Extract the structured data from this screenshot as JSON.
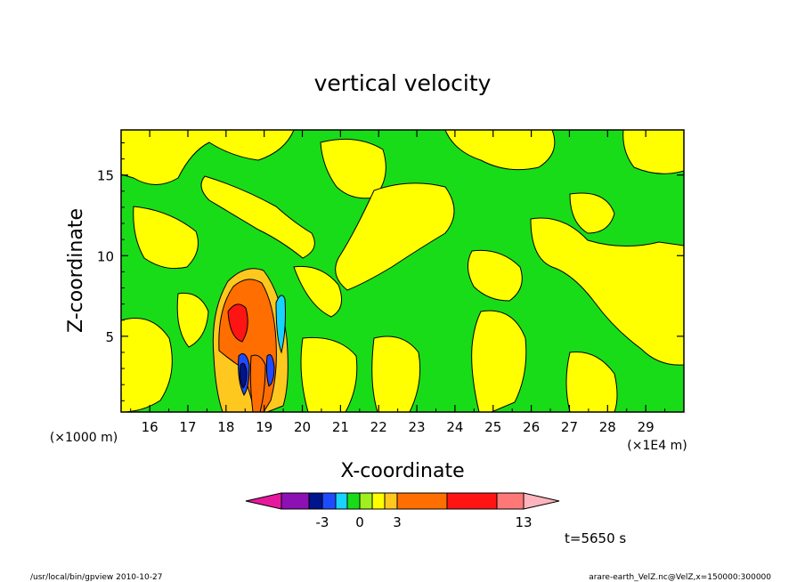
{
  "chart_data": {
    "type": "heatmap",
    "title": "vertical velocity",
    "xlabel": "X-coordinate",
    "ylabel": "Z-coordinate",
    "x_unit_label": "(×1E4 m)",
    "y_unit_label": "(×1000 m)",
    "x_ticks": [
      "16",
      "17",
      "18",
      "19",
      "20",
      "21",
      "22",
      "23",
      "24",
      "25",
      "26",
      "27",
      "28",
      "29"
    ],
    "y_ticks": [
      "5",
      "10",
      "15"
    ],
    "xlim": [
      15.25,
      30
    ],
    "ylim": [
      0.3,
      17.8
    ],
    "colorbar": {
      "colors": [
        "#e6199e",
        "#8c10b4",
        "#00148c",
        "#1e4bff",
        "#19d2ff",
        "#19dc19",
        "#a0f01e",
        "#ffff00",
        "#ffc81e",
        "#ff6e00",
        "#ff1414",
        "#ff7878",
        "#ffb4be"
      ],
      "tick_labels": [
        "-3",
        "0",
        "3",
        "13"
      ]
    },
    "time_label": "t=5650 s",
    "footer_left": "/usr/local/bin/gpview  2010-10-27",
    "footer_right": "arare-earth_VelZ.nc@VelZ,x=150000:300000"
  }
}
